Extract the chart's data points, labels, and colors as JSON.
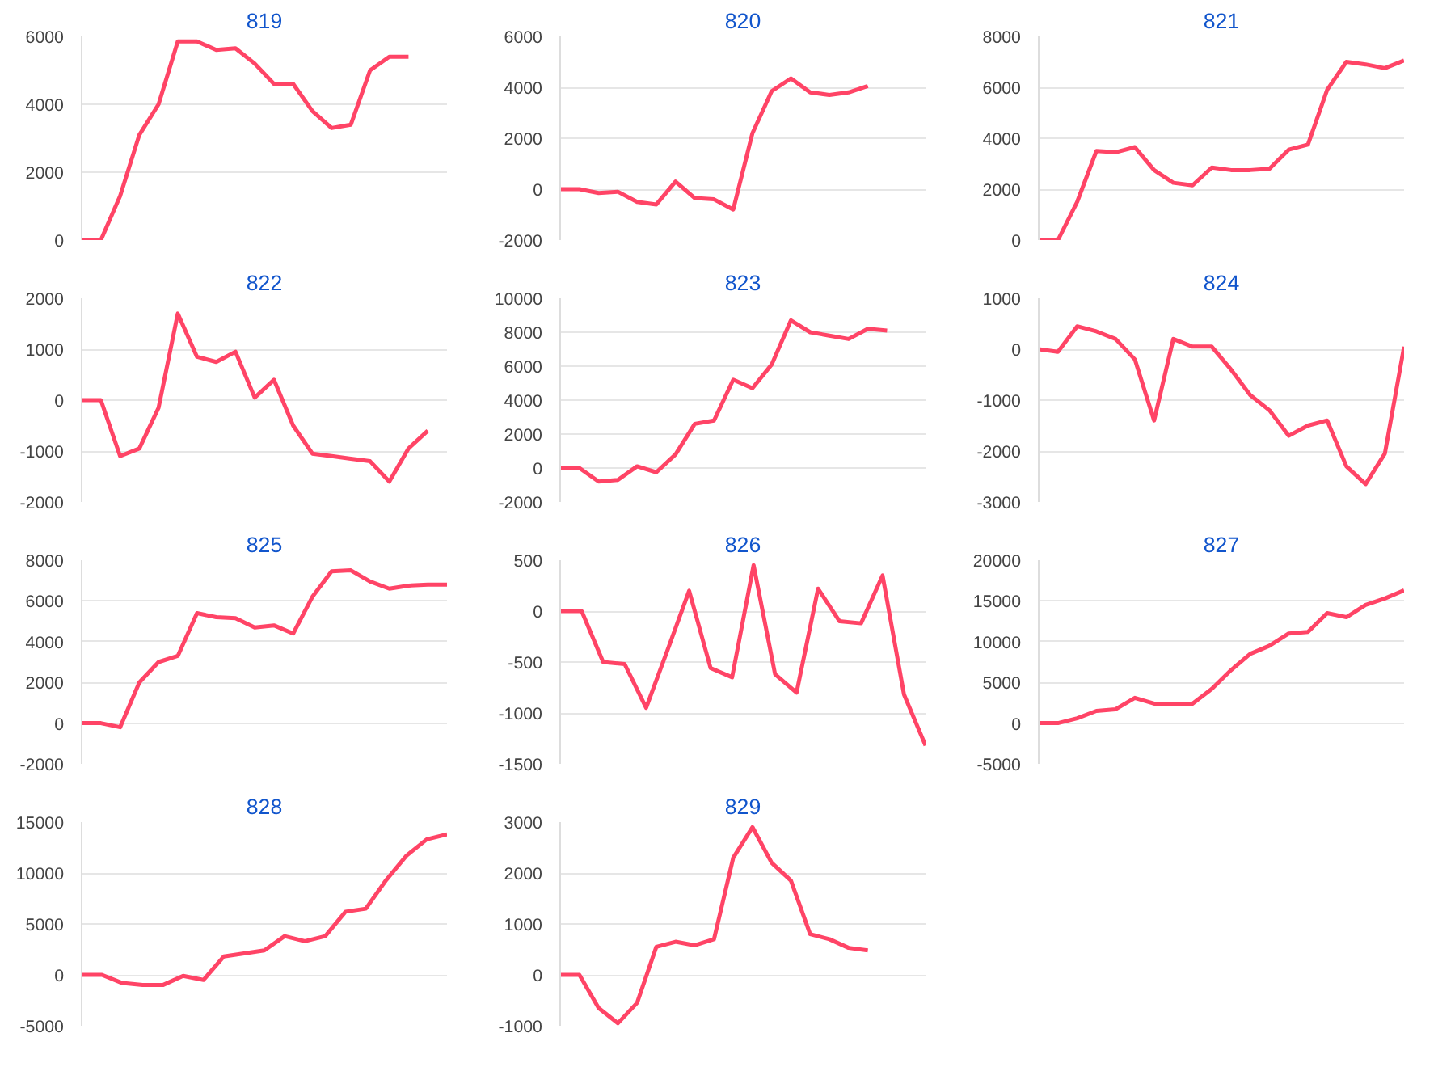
{
  "chart_data": [
    {
      "type": "line",
      "title": "819",
      "categories": [
        null,
        null,
        null,
        null,
        null,
        null,
        null,
        null,
        null,
        null,
        null,
        null,
        null,
        null,
        null,
        null,
        null,
        null,
        null,
        null
      ],
      "series": [
        {
          "color": "#ff4466",
          "values": [
            0,
            0,
            1300,
            3100,
            4000,
            5850,
            5850,
            5600,
            5650,
            5200,
            4600,
            4600,
            3800,
            3300,
            3400,
            5000,
            5400,
            5400,
            null,
            null
          ]
        }
      ],
      "ylim": [
        0,
        6000
      ],
      "yticks": [
        0,
        2000,
        4000,
        6000
      ],
      "grid": "y",
      "tick_labels": "y"
    },
    {
      "type": "line",
      "title": "820",
      "categories": [
        null,
        null,
        null,
        null,
        null,
        null,
        null,
        null,
        null,
        null,
        null,
        null,
        null,
        null,
        null,
        null,
        null,
        null,
        null,
        null
      ],
      "series": [
        {
          "color": "#ff4466",
          "values": [
            0,
            0,
            -150,
            -100,
            -500,
            -600,
            300,
            -350,
            -400,
            -800,
            2200,
            3850,
            4350,
            3800,
            3700,
            3800,
            4050,
            null,
            null,
            null
          ]
        }
      ],
      "ylim": [
        -2000,
        6000
      ],
      "yticks": [
        -2000,
        0,
        2000,
        4000,
        6000
      ],
      "grid": "y",
      "tick_labels": "y"
    },
    {
      "type": "line",
      "title": "821",
      "categories": [
        null,
        null,
        null,
        null,
        null,
        null,
        null,
        null,
        null,
        null,
        null,
        null,
        null,
        null,
        null,
        null,
        null,
        null,
        null,
        null
      ],
      "series": [
        {
          "color": "#ff4466",
          "values": [
            0,
            0,
            1500,
            3500,
            3450,
            3650,
            2750,
            2250,
            2150,
            2850,
            2750,
            2750,
            2800,
            3550,
            3750,
            5900,
            7000,
            6900,
            6750,
            7050
          ]
        }
      ],
      "ylim": [
        0,
        8000
      ],
      "yticks": [
        0,
        2000,
        4000,
        6000,
        8000
      ],
      "grid": "y",
      "tick_labels": "y"
    },
    {
      "type": "line",
      "title": "822",
      "categories": [
        null,
        null,
        null,
        null,
        null,
        null,
        null,
        null,
        null,
        null,
        null,
        null,
        null,
        null,
        null,
        null,
        null,
        null,
        null,
        null
      ],
      "series": [
        {
          "color": "#ff4466",
          "values": [
            0,
            0,
            -1100,
            -950,
            -150,
            1700,
            850,
            750,
            950,
            50,
            400,
            -500,
            -1050,
            -1100,
            -1150,
            -1200,
            -1600,
            -950,
            -600,
            null
          ]
        }
      ],
      "ylim": [
        -2000,
        2000
      ],
      "yticks": [
        -2000,
        -1000,
        0,
        1000,
        2000
      ],
      "grid": "y",
      "tick_labels": "y"
    },
    {
      "type": "line",
      "title": "823",
      "categories": [
        null,
        null,
        null,
        null,
        null,
        null,
        null,
        null,
        null,
        null,
        null,
        null,
        null,
        null,
        null,
        null,
        null,
        null,
        null,
        null
      ],
      "series": [
        {
          "color": "#ff4466",
          "values": [
            0,
            0,
            -800,
            -700,
            100,
            -250,
            800,
            2600,
            2800,
            5200,
            4700,
            6100,
            8700,
            8000,
            7800,
            7600,
            8200,
            8100,
            null,
            null
          ]
        }
      ],
      "ylim": [
        -2000,
        10000
      ],
      "yticks": [
        -2000,
        0,
        2000,
        4000,
        6000,
        8000,
        10000
      ],
      "grid": "y",
      "tick_labels": "y"
    },
    {
      "type": "line",
      "title": "824",
      "categories": [
        null,
        null,
        null,
        null,
        null,
        null,
        null,
        null,
        null,
        null,
        null,
        null,
        null,
        null,
        null,
        null,
        null,
        null,
        null,
        null
      ],
      "series": [
        {
          "color": "#ff4466",
          "values": [
            0,
            -50,
            450,
            350,
            200,
            -200,
            -1400,
            200,
            50,
            50,
            -400,
            -900,
            -1200,
            -1700,
            -1500,
            -1400,
            -2300,
            -2650,
            -2050,
            50
          ]
        }
      ],
      "ylim": [
        -3000,
        1000
      ],
      "yticks": [
        -3000,
        -2000,
        -1000,
        0,
        1000
      ],
      "grid": "y",
      "tick_labels": "y"
    },
    {
      "type": "line",
      "title": "825",
      "categories": [
        null,
        null,
        null,
        null,
        null,
        null,
        null,
        null,
        null,
        null,
        null,
        null,
        null,
        null,
        null,
        null,
        null,
        null,
        null,
        null
      ],
      "series": [
        {
          "color": "#ff4466",
          "values": [
            0,
            0,
            -200,
            2000,
            3000,
            3300,
            5400,
            5200,
            5150,
            4700,
            4800,
            4400,
            6200,
            7450,
            7500,
            6950,
            6600,
            6750,
            6800,
            6800
          ]
        }
      ],
      "ylim": [
        -2000,
        8000
      ],
      "yticks": [
        -2000,
        0,
        2000,
        4000,
        6000,
        8000
      ],
      "grid": "y",
      "tick_labels": "y"
    },
    {
      "type": "line",
      "title": "826",
      "categories": [
        null,
        null,
        null,
        null,
        null,
        null,
        null,
        null,
        null,
        null,
        null,
        null,
        null,
        null,
        null,
        null,
        null,
        null
      ],
      "series": [
        {
          "color": "#ff4466",
          "values": [
            0,
            0,
            -500,
            -520,
            -950,
            -380,
            200,
            -560,
            -650,
            450,
            -620,
            -800,
            220,
            -100,
            -120,
            350,
            -820,
            -1320
          ]
        }
      ],
      "ylim": [
        -1500,
        500
      ],
      "yticks": [
        -1500,
        -1000,
        -500,
        0,
        500
      ],
      "grid": "y",
      "tick_labels": "y"
    },
    {
      "type": "line",
      "title": "827",
      "categories": [
        null,
        null,
        null,
        null,
        null,
        null,
        null,
        null,
        null,
        null,
        null,
        null,
        null,
        null,
        null,
        null,
        null,
        null,
        null,
        null
      ],
      "series": [
        {
          "color": "#ff4466",
          "values": [
            0,
            0,
            600,
            1500,
            1700,
            3100,
            2400,
            2400,
            2400,
            4200,
            6500,
            8500,
            9500,
            11000,
            11200,
            13500,
            13000,
            14500,
            15300,
            16300
          ]
        }
      ],
      "ylim": [
        -5000,
        20000
      ],
      "yticks": [
        -5000,
        0,
        5000,
        10000,
        15000,
        20000
      ],
      "grid": "y",
      "tick_labels": "y"
    },
    {
      "type": "line",
      "title": "828",
      "categories": [
        null,
        null,
        null,
        null,
        null,
        null,
        null,
        null,
        null,
        null,
        null,
        null,
        null,
        null,
        null,
        null,
        null,
        null,
        null
      ],
      "series": [
        {
          "color": "#ff4466",
          "values": [
            0,
            0,
            -800,
            -1000,
            -1000,
            -100,
            -500,
            1800,
            2100,
            2400,
            3800,
            3300,
            3800,
            6200,
            6500,
            9300,
            11700,
            13300,
            13800
          ]
        }
      ],
      "ylim": [
        -5000,
        15000
      ],
      "yticks": [
        -5000,
        0,
        5000,
        10000,
        15000
      ],
      "grid": "y",
      "tick_labels": "y"
    },
    {
      "type": "line",
      "title": "829",
      "categories": [
        null,
        null,
        null,
        null,
        null,
        null,
        null,
        null,
        null,
        null,
        null,
        null,
        null,
        null,
        null,
        null,
        null,
        null,
        null,
        null
      ],
      "series": [
        {
          "color": "#ff4466",
          "values": [
            0,
            0,
            -650,
            -950,
            -550,
            550,
            650,
            580,
            700,
            2300,
            2900,
            2200,
            1850,
            800,
            700,
            530,
            480,
            null,
            null,
            null
          ]
        }
      ],
      "ylim": [
        -1000,
        3000
      ],
      "yticks": [
        -1000,
        0,
        1000,
        2000,
        3000
      ],
      "grid": "y",
      "tick_labels": "y"
    }
  ]
}
